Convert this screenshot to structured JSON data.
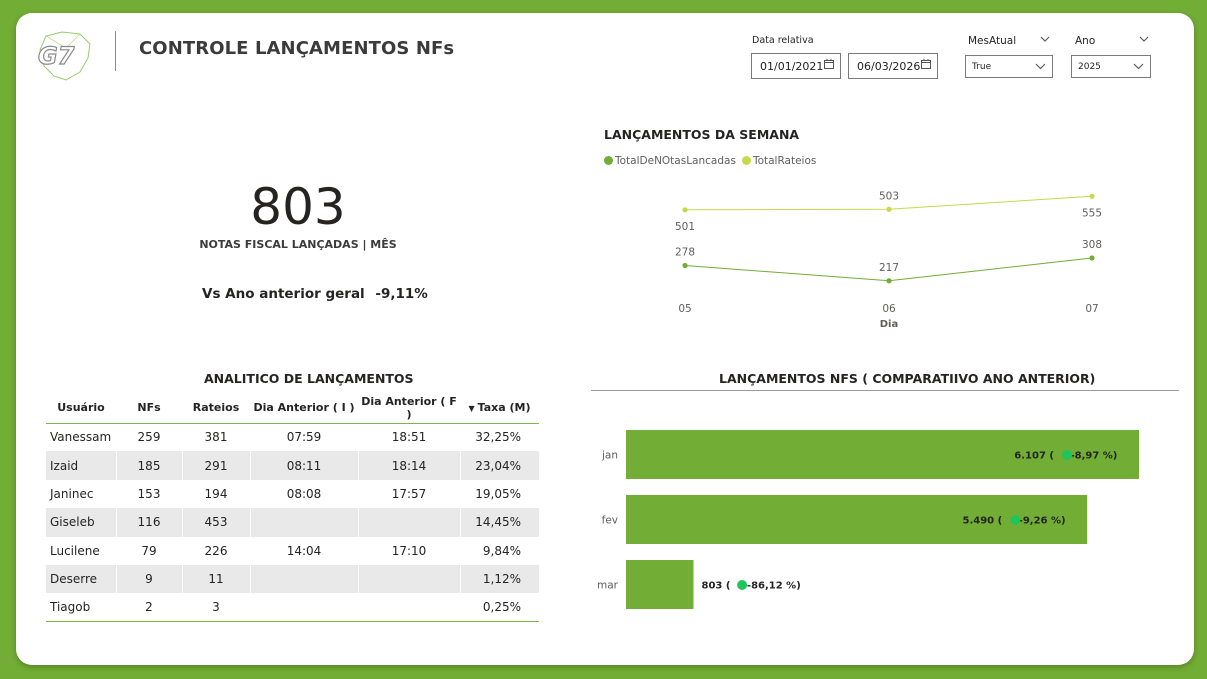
{
  "header": {
    "title": "CONTROLE LANÇAMENTOS NFs"
  },
  "filters": {
    "date_label": "Data relativa",
    "date_start": "01/01/2021",
    "date_end": "06/03/2026",
    "month_label": "MesAtual",
    "month_value": "True",
    "year_label": "Ano",
    "year_value": "2025"
  },
  "kpi": {
    "value": "803",
    "label": "NOTAS FISCAL LANÇADAS | MÊS",
    "vs_label": "Vs Ano anterior geral",
    "vs_value": "-9,11%"
  },
  "weekly": {
    "title": "LANÇAMENTOS DA SEMANA",
    "legend": [
      "TotalDeNOtasLancadas",
      "TotalRateios"
    ],
    "x_title": "Dia",
    "colors": [
      "#72ad35",
      "#c6d94a"
    ]
  },
  "table": {
    "title": "ANALITICO DE LANÇAMENTOS",
    "columns": [
      "Usuário",
      "NFs",
      "Rateios",
      "Dia Anterior ( I )",
      "Dia Anterior ( F )",
      "Taxa (M)"
    ],
    "rows": [
      [
        "Vanessam",
        "259",
        "381",
        "07:59",
        "18:51",
        "32,25%"
      ],
      [
        "Izaid",
        "185",
        "291",
        "08:11",
        "18:14",
        "23,04%"
      ],
      [
        "Janinec",
        "153",
        "194",
        "08:08",
        "17:57",
        "19,05%"
      ],
      [
        "Giseleb",
        "116",
        "453",
        "",
        "",
        "14,45%"
      ],
      [
        "Lucilene",
        "79",
        "226",
        "14:04",
        "17:10",
        "9,84%"
      ],
      [
        "Deserre",
        "9",
        "11",
        "",
        "",
        "1,12%"
      ],
      [
        "Tiagob",
        "2",
        "3",
        "",
        "",
        "0,25%"
      ]
    ]
  },
  "comparative": {
    "title": "LANÇAMENTOS NFS ( COMPARATIIVO ANO ANTERIOR)",
    "bar_color": "#72ad35",
    "status_color": "#1fc55c"
  },
  "chart_data": [
    {
      "type": "line",
      "title": "LANÇAMENTOS DA SEMANA",
      "xlabel": "Dia",
      "categories": [
        "05",
        "06",
        "07"
      ],
      "series": [
        {
          "name": "TotalDeNOtasLancadas",
          "values": [
            278,
            217,
            308
          ]
        },
        {
          "name": "TotalRateios",
          "values": [
            501,
            503,
            555
          ]
        }
      ],
      "legend": "top-left",
      "grid": false
    },
    {
      "type": "bar",
      "title": "LANÇAMENTOS NFS ( COMPARATIIVO ANO ANTERIOR)",
      "orientation": "horizontal",
      "categories": [
        "jan",
        "fev",
        "mar"
      ],
      "values": [
        6107,
        5490,
        803
      ],
      "labels": [
        "6.107",
        "5.490",
        "803"
      ],
      "changes": [
        "-8,97 %",
        "-9,26 %",
        "-86,12 %"
      ],
      "grid": false
    }
  ]
}
